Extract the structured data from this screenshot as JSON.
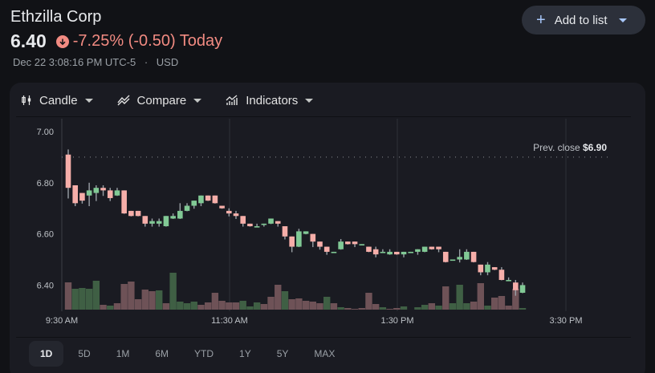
{
  "header": {
    "title": "Ethzilla Corp",
    "price": "6.40",
    "change_text": "-7.25% (-0.50) Today",
    "timestamp": "Dec 22 3:08:16 PM UTC-5",
    "separator": "·",
    "currency": "USD",
    "down_color": "#f28b82"
  },
  "add_button": {
    "icon": "plus-icon",
    "label": "Add to list"
  },
  "toolbar": {
    "candle": {
      "icon": "candlestick-icon",
      "label": "Candle"
    },
    "compare": {
      "icon": "compare-icon",
      "label": "Compare"
    },
    "indicators": {
      "icon": "indicators-icon",
      "label": "Indicators"
    }
  },
  "ranges": [
    {
      "label": "1D",
      "active": true
    },
    {
      "label": "5D",
      "active": false
    },
    {
      "label": "1M",
      "active": false
    },
    {
      "label": "6M",
      "active": false
    },
    {
      "label": "YTD",
      "active": false
    },
    {
      "label": "1Y",
      "active": false
    },
    {
      "label": "5Y",
      "active": false
    },
    {
      "label": "MAX",
      "active": false
    }
  ],
  "colors": {
    "up": "#81c995",
    "down": "#f6aea9",
    "vol_up": "#3f5f44",
    "vol_down": "#6e5257",
    "wick": "#9aa0a6"
  },
  "chart_data": {
    "type": "candlestick",
    "title": "Ethzilla Corp intraday (1D, 5-min candles)",
    "xlabel": "",
    "ylabel": "",
    "x_ticks": [
      "9:30 AM",
      "11:30 AM",
      "1:30 PM",
      "3:30 PM"
    ],
    "y_ticks": [
      "7.00",
      "6.80",
      "6.60",
      "6.40"
    ],
    "ylim": [
      6.31,
      7.04
    ],
    "prev_close": {
      "label": "Prev. close",
      "value": "$6.90",
      "price": 6.9
    },
    "grid": true,
    "candles": [
      [
        6.91,
        6.93,
        6.74,
        6.78
      ],
      [
        6.79,
        6.79,
        6.71,
        6.72
      ],
      [
        6.76,
        6.76,
        6.72,
        6.73
      ],
      [
        6.75,
        6.8,
        6.71,
        6.77
      ],
      [
        6.76,
        6.79,
        6.73,
        6.78
      ],
      [
        6.78,
        6.79,
        6.75,
        6.77
      ],
      [
        6.77,
        6.78,
        6.73,
        6.74
      ],
      [
        6.75,
        6.78,
        6.75,
        6.77
      ],
      [
        6.77,
        6.77,
        6.68,
        6.68
      ],
      [
        6.69,
        6.69,
        6.67,
        6.67
      ],
      [
        6.69,
        6.69,
        6.67,
        6.67
      ],
      [
        6.67,
        6.67,
        6.63,
        6.64
      ],
      [
        6.64,
        6.66,
        6.63,
        6.65
      ],
      [
        6.64,
        6.66,
        6.63,
        6.65
      ],
      [
        6.63,
        6.67,
        6.63,
        6.67
      ],
      [
        6.66,
        6.68,
        6.66,
        6.67
      ],
      [
        6.66,
        6.72,
        6.66,
        6.69
      ],
      [
        6.69,
        6.72,
        6.69,
        6.71
      ],
      [
        6.71,
        6.73,
        6.7,
        6.73
      ],
      [
        6.72,
        6.75,
        6.71,
        6.75
      ],
      [
        6.75,
        6.75,
        6.73,
        6.73
      ],
      [
        6.75,
        6.75,
        6.72,
        6.72
      ],
      [
        6.71,
        6.71,
        6.7,
        6.7
      ],
      [
        6.69,
        6.7,
        6.67,
        6.68
      ],
      [
        6.68,
        6.69,
        6.66,
        6.67
      ],
      [
        6.67,
        6.67,
        6.63,
        6.64
      ],
      [
        6.64,
        6.64,
        6.63,
        6.63
      ],
      [
        6.63,
        6.64,
        6.63,
        6.63
      ],
      [
        6.64,
        6.64,
        6.63,
        6.64
      ],
      [
        6.64,
        6.66,
        6.64,
        6.66
      ],
      [
        6.65,
        6.65,
        6.63,
        6.64
      ],
      [
        6.63,
        6.63,
        6.58,
        6.59
      ],
      [
        6.59,
        6.59,
        6.53,
        6.55
      ],
      [
        6.55,
        6.62,
        6.55,
        6.61
      ],
      [
        6.6,
        6.61,
        6.6,
        6.61
      ],
      [
        6.6,
        6.6,
        6.55,
        6.57
      ],
      [
        6.57,
        6.57,
        6.54,
        6.55
      ],
      [
        6.55,
        6.55,
        6.52,
        6.53
      ],
      [
        6.53,
        6.53,
        6.53,
        6.53
      ],
      [
        6.54,
        6.58,
        6.54,
        6.57
      ],
      [
        6.57,
        6.57,
        6.56,
        6.56
      ],
      [
        6.57,
        6.57,
        6.55,
        6.56
      ],
      [
        6.56,
        6.56,
        6.56,
        6.56
      ],
      [
        6.55,
        6.55,
        6.53,
        6.53
      ],
      [
        6.54,
        6.55,
        6.51,
        6.52
      ],
      [
        6.53,
        6.54,
        6.53,
        6.53
      ],
      [
        6.52,
        6.54,
        6.52,
        6.53
      ],
      [
        6.53,
        6.53,
        6.52,
        6.52
      ],
      [
        6.52,
        6.53,
        6.51,
        6.53
      ],
      [
        6.53,
        6.53,
        6.53,
        6.53
      ],
      [
        6.53,
        6.54,
        6.52,
        6.54
      ],
      [
        6.53,
        6.55,
        6.53,
        6.55
      ],
      [
        6.55,
        6.55,
        6.54,
        6.54
      ],
      [
        6.55,
        6.55,
        6.53,
        6.54
      ],
      [
        6.53,
        6.53,
        6.49,
        6.49
      ],
      [
        6.5,
        6.5,
        6.5,
        6.5
      ],
      [
        6.5,
        6.54,
        6.49,
        6.51
      ],
      [
        6.5,
        6.54,
        6.5,
        6.53
      ],
      [
        6.53,
        6.53,
        6.49,
        6.49
      ],
      [
        6.48,
        6.48,
        6.44,
        6.45
      ],
      [
        6.45,
        6.49,
        6.44,
        6.48
      ],
      [
        6.47,
        6.47,
        6.46,
        6.46
      ],
      [
        6.46,
        6.47,
        6.42,
        6.42
      ],
      [
        6.42,
        6.43,
        6.42,
        6.42
      ],
      [
        6.41,
        6.42,
        6.36,
        6.38
      ],
      [
        6.37,
        6.41,
        6.37,
        6.4
      ]
    ],
    "volume": [
      [
        34,
        0
      ],
      [
        26,
        1
      ],
      [
        27,
        1
      ],
      [
        26,
        1
      ],
      [
        36,
        1
      ],
      [
        6,
        0
      ],
      [
        5,
        1
      ],
      [
        8,
        0
      ],
      [
        32,
        0
      ],
      [
        35,
        0
      ],
      [
        13,
        0
      ],
      [
        25,
        0
      ],
      [
        23,
        0
      ],
      [
        24,
        1
      ],
      [
        8,
        0
      ],
      [
        46,
        1
      ],
      [
        10,
        1
      ],
      [
        8,
        1
      ],
      [
        10,
        1
      ],
      [
        6,
        0
      ],
      [
        9,
        0
      ],
      [
        21,
        0
      ],
      [
        11,
        0
      ],
      [
        9,
        0
      ],
      [
        9,
        0
      ],
      [
        11,
        1
      ],
      [
        4,
        1
      ],
      [
        9,
        1
      ],
      [
        7,
        0
      ],
      [
        16,
        0
      ],
      [
        31,
        0
      ],
      [
        23,
        1
      ],
      [
        13,
        0
      ],
      [
        14,
        0
      ],
      [
        11,
        0
      ],
      [
        10,
        0
      ],
      [
        8,
        0
      ],
      [
        16,
        1
      ],
      [
        8,
        0
      ],
      [
        3,
        1
      ],
      [
        2,
        0
      ],
      [
        1,
        0
      ],
      [
        2,
        0
      ],
      [
        21,
        0
      ],
      [
        7,
        0
      ],
      [
        3,
        1
      ],
      [
        1,
        0
      ],
      [
        2,
        0
      ],
      [
        4,
        1
      ],
      [
        0,
        0
      ],
      [
        3,
        1
      ],
      [
        6,
        1
      ],
      [
        8,
        0
      ],
      [
        5,
        1
      ],
      [
        29,
        0
      ],
      [
        8,
        1
      ],
      [
        31,
        1
      ],
      [
        8,
        1
      ],
      [
        10,
        0
      ],
      [
        33,
        0
      ],
      [
        5,
        1
      ],
      [
        15,
        0
      ],
      [
        17,
        0
      ],
      [
        5,
        0
      ],
      [
        26,
        0
      ],
      [
        2,
        1
      ]
    ]
  }
}
